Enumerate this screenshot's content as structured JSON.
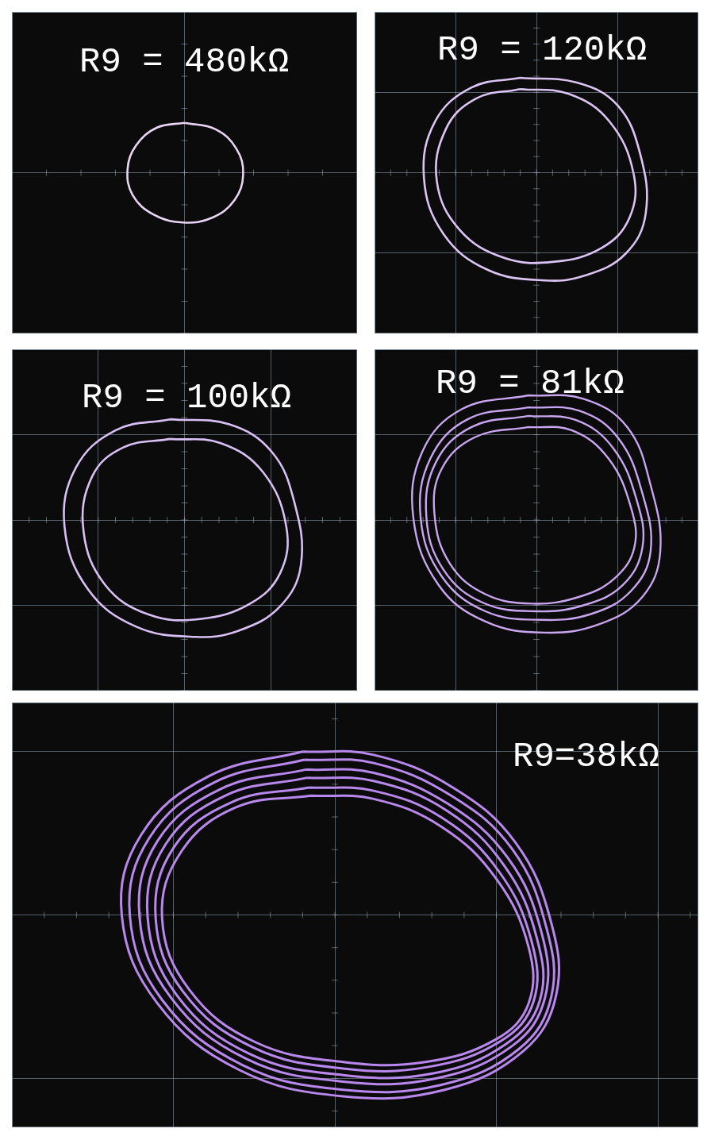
{
  "chart_data": [
    {
      "type": "scatter",
      "title": "R9 = 480kΩ",
      "color": "#ead5f5",
      "marker": "none",
      "line_style": "solid",
      "grid": true,
      "tick_labels": false,
      "xlim": [
        -1,
        1
      ],
      "ylim": [
        -1,
        1
      ],
      "xticks": [
        -1,
        0,
        1
      ],
      "yticks": [
        -1,
        0,
        1
      ],
      "x": [
        0.0,
        0.18,
        0.3,
        0.34,
        0.29,
        0.16,
        -0.01,
        -0.18,
        -0.3,
        -0.33,
        -0.28,
        -0.16,
        0.0
      ],
      "values": [
        0.31,
        0.27,
        0.15,
        -0.01,
        -0.17,
        -0.28,
        -0.31,
        -0.26,
        -0.14,
        0.02,
        0.17,
        0.28,
        0.31
      ]
    },
    {
      "type": "scatter",
      "title": "R9 = 120kΩ",
      "color": "#dcc4f4",
      "marker": "none",
      "line_style": "solid",
      "grid": true,
      "tick_labels": false,
      "xlim": [
        -2,
        2
      ],
      "ylim": [
        -2,
        2
      ],
      "xticks": [
        -2,
        -1,
        0,
        1,
        2
      ],
      "yticks": [
        -2,
        -1,
        0,
        1,
        2
      ],
      "x": [
        -0.2,
        0.5,
        1.0,
        1.28,
        1.35,
        1.1,
        0.6,
        0.1,
        -0.6,
        -1.15,
        -1.39,
        -1.25,
        -0.8,
        -0.2,
        null,
        -0.2,
        0.4,
        0.9,
        1.2,
        1.15,
        0.8,
        0.2,
        -0.4,
        -0.95,
        -1.23,
        -1.12,
        -0.75,
        -0.2
      ],
      "values": [
        1.18,
        1.12,
        0.84,
        0.24,
        -0.51,
        -1.01,
        -1.28,
        -1.34,
        -1.21,
        -0.76,
        -0.06,
        0.64,
        1.06,
        1.18,
        null,
        1.04,
        0.98,
        0.64,
        -0.01,
        -0.56,
        -0.94,
        -1.11,
        -1.06,
        -0.71,
        -0.11,
        0.54,
        0.92,
        1.04
      ]
    },
    {
      "type": "scatter",
      "title": "R9 = 100kΩ",
      "color": "#d8c0f4",
      "marker": "none",
      "line_style": "solid",
      "grid": true,
      "tick_labels": false,
      "xlim": [
        -2,
        2
      ],
      "ylim": [
        -2,
        2
      ],
      "xticks": [
        -2,
        -1,
        0,
        1,
        2
      ],
      "yticks": [
        -2,
        -1,
        0,
        1,
        2
      ],
      "x": [
        -0.17,
        0.52,
        1.01,
        1.27,
        1.35,
        1.11,
        0.62,
        0.13,
        -0.56,
        -1.12,
        -1.39,
        -1.26,
        -0.8,
        -0.17,
        null,
        -0.17,
        0.42,
        0.91,
        1.18,
        1.11,
        0.76,
        0.18,
        -0.41,
        -0.92,
        -1.17,
        -1.07,
        -0.71,
        -0.17
      ],
      "values": [
        1.18,
        1.12,
        0.8,
        0.22,
        -0.52,
        -1.01,
        -1.3,
        -1.37,
        -1.25,
        -0.81,
        -0.08,
        0.61,
        1.05,
        1.18,
        null,
        0.95,
        0.9,
        0.56,
        -0.08,
        -0.62,
        -0.98,
        -1.16,
        -1.11,
        -0.76,
        -0.13,
        0.51,
        0.85,
        0.95
      ]
    },
    {
      "type": "scatter",
      "title": "R9 = 81kΩ",
      "color": "#c9a6f0",
      "marker": "none",
      "line_style": "solid",
      "grid": true,
      "tick_labels": false,
      "xlim": [
        -2,
        2
      ],
      "ylim": [
        -2,
        2
      ],
      "xticks": [
        -2,
        -1,
        0,
        1,
        2
      ],
      "yticks": [
        -2,
        -1,
        0,
        1,
        2
      ],
      "x": [
        -0.1,
        0.58,
        1.12,
        1.41,
        1.53,
        1.31,
        0.78,
        0.1,
        -0.63,
        -1.21,
        -1.52,
        -1.41,
        -0.92,
        -0.1,
        null,
        -0.1,
        0.53,
        1.01,
        1.31,
        1.41,
        1.17,
        0.68,
        0.05,
        -0.63,
        -1.17,
        -1.43,
        -1.31,
        -0.85,
        -0.1,
        null,
        -0.1,
        0.49,
        0.95,
        1.24,
        1.31,
        1.07,
        0.58,
        0.0,
        -0.66,
        -1.15,
        -1.36,
        -1.24,
        -0.8,
        -0.1,
        null,
        -0.1,
        0.44,
        0.89,
        1.17,
        1.21,
        0.97,
        0.53,
        -0.05,
        -0.63,
        -1.07,
        -1.26,
        -1.17,
        -0.76,
        -0.1
      ],
      "values": [
        1.46,
        1.42,
        1.09,
        0.41,
        -0.37,
        -0.9,
        -1.22,
        -1.32,
        -1.19,
        -0.76,
        0.02,
        0.8,
        1.3,
        1.46,
        null,
        1.32,
        1.28,
        0.96,
        0.31,
        -0.37,
        -0.83,
        -1.1,
        -1.17,
        -1.07,
        -0.66,
        0.02,
        0.72,
        1.18,
        1.32,
        null,
        1.22,
        1.17,
        0.84,
        0.23,
        -0.32,
        -0.76,
        -1.0,
        -1.07,
        -0.97,
        -0.58,
        0.04,
        0.68,
        1.09,
        1.22,
        null,
        1.09,
        1.05,
        0.72,
        0.14,
        -0.32,
        -0.68,
        -0.9,
        -0.98,
        -0.87,
        -0.51,
        0.07,
        0.6,
        0.97,
        1.09
      ]
    },
    {
      "type": "scatter",
      "title": "R9=38kΩ",
      "color": "#b888ec",
      "marker": "none",
      "line_style": "solid",
      "grid": true,
      "tick_labels": false,
      "xlim": [
        -2,
        2.25
      ],
      "ylim": [
        -1.3,
        1.3
      ],
      "xticks": [
        -2,
        -1,
        0,
        1,
        2
      ],
      "yticks": [
        -1,
        0,
        1
      ],
      "x": [
        -0.2,
        0.24,
        0.73,
        1.12,
        1.34,
        1.37,
        1.17,
        0.68,
        0.05,
        -0.59,
        -1.1,
        -1.32,
        -1.2,
        -0.78,
        -0.2,
        null,
        -0.19,
        0.24,
        0.72,
        1.1,
        1.31,
        1.34,
        1.14,
        0.66,
        0.05,
        -0.57,
        -1.07,
        -1.27,
        -1.15,
        -0.75,
        -0.19,
        null,
        -0.18,
        0.24,
        0.7,
        1.07,
        1.28,
        1.3,
        1.1,
        0.63,
        0.05,
        -0.55,
        -1.02,
        -1.21,
        -1.1,
        -0.71,
        -0.18,
        null,
        -0.17,
        0.24,
        0.69,
        1.05,
        1.25,
        1.27,
        1.06,
        0.61,
        0.05,
        -0.53,
        -0.98,
        -1.16,
        -1.05,
        -0.68,
        -0.17,
        null,
        -0.16,
        0.24,
        0.67,
        1.02,
        1.22,
        1.23,
        1.03,
        0.58,
        0.05,
        -0.51,
        -0.94,
        -1.11,
        -1.0,
        -0.64,
        -0.16,
        null,
        -0.15,
        0.24,
        0.66,
        1.0,
        1.2,
        1.2,
        1.0,
        0.56,
        0.05,
        -0.49,
        -0.9,
        -1.07,
        -0.95,
        -0.61,
        -0.15
      ],
      "values": [
        1.0,
        0.98,
        0.78,
        0.44,
        -0.05,
        -0.49,
        -0.83,
        -1.07,
        -1.11,
        -0.95,
        -0.54,
        0.0,
        0.49,
        0.85,
        1.0,
        null,
        0.95,
        0.93,
        0.73,
        0.4,
        -0.08,
        -0.5,
        -0.82,
        -1.04,
        -1.07,
        -0.92,
        -0.52,
        0.0,
        0.47,
        0.81,
        0.95,
        null,
        0.89,
        0.87,
        0.68,
        0.35,
        -0.11,
        -0.51,
        -0.8,
        -1.0,
        -1.02,
        -0.88,
        -0.5,
        -0.01,
        0.45,
        0.77,
        0.89,
        null,
        0.84,
        0.82,
        0.64,
        0.3,
        -0.14,
        -0.52,
        -0.79,
        -0.97,
        -0.98,
        -0.85,
        -0.49,
        -0.01,
        0.43,
        0.73,
        0.84,
        null,
        0.78,
        0.76,
        0.59,
        0.26,
        -0.17,
        -0.53,
        -0.77,
        -0.93,
        -0.94,
        -0.81,
        -0.47,
        -0.02,
        0.41,
        0.69,
        0.78,
        null,
        0.73,
        0.71,
        0.54,
        0.22,
        -0.2,
        -0.54,
        -0.76,
        -0.9,
        -0.9,
        -0.78,
        -0.46,
        -0.02,
        0.39,
        0.66,
        0.73
      ]
    }
  ]
}
